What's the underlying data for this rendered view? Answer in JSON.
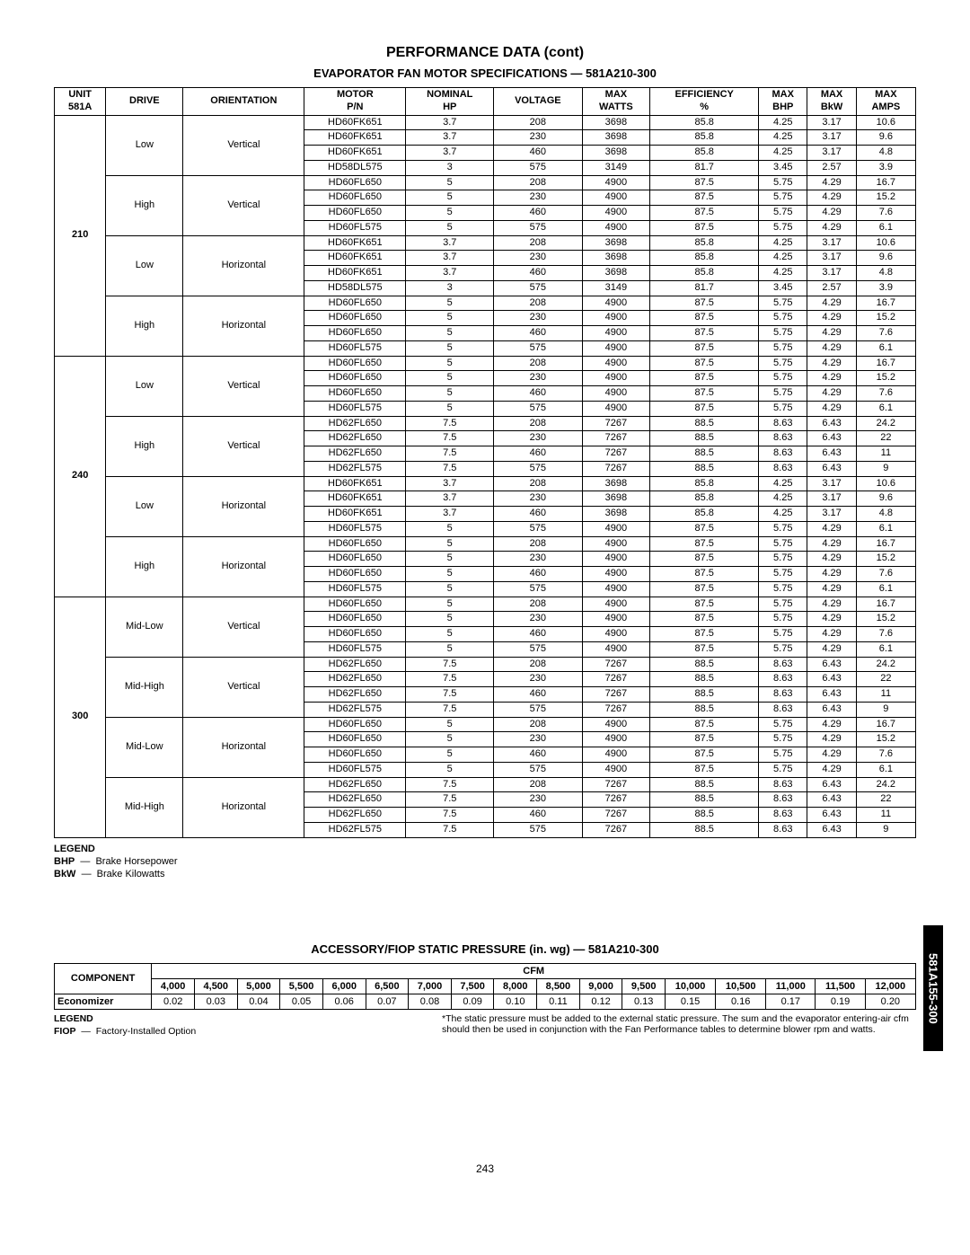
{
  "page_title": "PERFORMANCE DATA (cont)",
  "section1_title": "EVAPORATOR FAN MOTOR SPECIFICATIONS — 581A210-300",
  "section2_title": "ACCESSORY/FIOP STATIC PRESSURE (in. wg) — 581A210-300",
  "side_tab": "581A155-300",
  "page_number": "243",
  "table1": {
    "headers": {
      "unit": "UNIT\n581A",
      "drive": "DRIVE",
      "orientation": "ORIENTATION",
      "motor": "MOTOR\nP/N",
      "nominal": "NOMINAL\nHP",
      "voltage": "VOLTAGE",
      "watts": "MAX\nWATTS",
      "eff": "EFFICIENCY\n%",
      "bhp": "MAX\nBHP",
      "bkw": "MAX\nBkW",
      "amps": "MAX\nAMPS"
    },
    "blocks": [
      {
        "unit": "210",
        "groups": [
          {
            "drive": "Low",
            "orient": "Vertical",
            "rows": [
              [
                "HD60FK651",
                "3.7",
                "208",
                "3698",
                "85.8",
                "4.25",
                "3.17",
                "10.6"
              ],
              [
                "HD60FK651",
                "3.7",
                "230",
                "3698",
                "85.8",
                "4.25",
                "3.17",
                "9.6"
              ],
              [
                "HD60FK651",
                "3.7",
                "460",
                "3698",
                "85.8",
                "4.25",
                "3.17",
                "4.8"
              ],
              [
                "HD58DL575",
                "3",
                "575",
                "3149",
                "81.7",
                "3.45",
                "2.57",
                "3.9"
              ]
            ]
          },
          {
            "drive": "High",
            "orient": "Vertical",
            "rows": [
              [
                "HD60FL650",
                "5",
                "208",
                "4900",
                "87.5",
                "5.75",
                "4.29",
                "16.7"
              ],
              [
                "HD60FL650",
                "5",
                "230",
                "4900",
                "87.5",
                "5.75",
                "4.29",
                "15.2"
              ],
              [
                "HD60FL650",
                "5",
                "460",
                "4900",
                "87.5",
                "5.75",
                "4.29",
                "7.6"
              ],
              [
                "HD60FL575",
                "5",
                "575",
                "4900",
                "87.5",
                "5.75",
                "4.29",
                "6.1"
              ]
            ]
          },
          {
            "drive": "Low",
            "orient": "Horizontal",
            "rows": [
              [
                "HD60FK651",
                "3.7",
                "208",
                "3698",
                "85.8",
                "4.25",
                "3.17",
                "10.6"
              ],
              [
                "HD60FK651",
                "3.7",
                "230",
                "3698",
                "85.8",
                "4.25",
                "3.17",
                "9.6"
              ],
              [
                "HD60FK651",
                "3.7",
                "460",
                "3698",
                "85.8",
                "4.25",
                "3.17",
                "4.8"
              ],
              [
                "HD58DL575",
                "3",
                "575",
                "3149",
                "81.7",
                "3.45",
                "2.57",
                "3.9"
              ]
            ]
          },
          {
            "drive": "High",
            "orient": "Horizontal",
            "rows": [
              [
                "HD60FL650",
                "5",
                "208",
                "4900",
                "87.5",
                "5.75",
                "4.29",
                "16.7"
              ],
              [
                "HD60FL650",
                "5",
                "230",
                "4900",
                "87.5",
                "5.75",
                "4.29",
                "15.2"
              ],
              [
                "HD60FL650",
                "5",
                "460",
                "4900",
                "87.5",
                "5.75",
                "4.29",
                "7.6"
              ],
              [
                "HD60FL575",
                "5",
                "575",
                "4900",
                "87.5",
                "5.75",
                "4.29",
                "6.1"
              ]
            ]
          }
        ]
      },
      {
        "unit": "240",
        "groups": [
          {
            "drive": "Low",
            "orient": "Vertical",
            "rows": [
              [
                "HD60FL650",
                "5",
                "208",
                "4900",
                "87.5",
                "5.75",
                "4.29",
                "16.7"
              ],
              [
                "HD60FL650",
                "5",
                "230",
                "4900",
                "87.5",
                "5.75",
                "4.29",
                "15.2"
              ],
              [
                "HD60FL650",
                "5",
                "460",
                "4900",
                "87.5",
                "5.75",
                "4.29",
                "7.6"
              ],
              [
                "HD60FL575",
                "5",
                "575",
                "4900",
                "87.5",
                "5.75",
                "4.29",
                "6.1"
              ]
            ]
          },
          {
            "drive": "High",
            "orient": "Vertical",
            "rows": [
              [
                "HD62FL650",
                "7.5",
                "208",
                "7267",
                "88.5",
                "8.63",
                "6.43",
                "24.2"
              ],
              [
                "HD62FL650",
                "7.5",
                "230",
                "7267",
                "88.5",
                "8.63",
                "6.43",
                "22"
              ],
              [
                "HD62FL650",
                "7.5",
                "460",
                "7267",
                "88.5",
                "8.63",
                "6.43",
                "11"
              ],
              [
                "HD62FL575",
                "7.5",
                "575",
                "7267",
                "88.5",
                "8.63",
                "6.43",
                "9"
              ]
            ]
          },
          {
            "drive": "Low",
            "orient": "Horizontal",
            "rows": [
              [
                "HD60FK651",
                "3.7",
                "208",
                "3698",
                "85.8",
                "4.25",
                "3.17",
                "10.6"
              ],
              [
                "HD60FK651",
                "3.7",
                "230",
                "3698",
                "85.8",
                "4.25",
                "3.17",
                "9.6"
              ],
              [
                "HD60FK651",
                "3.7",
                "460",
                "3698",
                "85.8",
                "4.25",
                "3.17",
                "4.8"
              ],
              [
                "HD60FL575",
                "5",
                "575",
                "4900",
                "87.5",
                "5.75",
                "4.29",
                "6.1"
              ]
            ]
          },
          {
            "drive": "High",
            "orient": "Horizontal",
            "rows": [
              [
                "HD60FL650",
                "5",
                "208",
                "4900",
                "87.5",
                "5.75",
                "4.29",
                "16.7"
              ],
              [
                "HD60FL650",
                "5",
                "230",
                "4900",
                "87.5",
                "5.75",
                "4.29",
                "15.2"
              ],
              [
                "HD60FL650",
                "5",
                "460",
                "4900",
                "87.5",
                "5.75",
                "4.29",
                "7.6"
              ],
              [
                "HD60FL575",
                "5",
                "575",
                "4900",
                "87.5",
                "5.75",
                "4.29",
                "6.1"
              ]
            ]
          }
        ]
      },
      {
        "unit": "300",
        "groups": [
          {
            "drive": "Mid-Low",
            "orient": "Vertical",
            "rows": [
              [
                "HD60FL650",
                "5",
                "208",
                "4900",
                "87.5",
                "5.75",
                "4.29",
                "16.7"
              ],
              [
                "HD60FL650",
                "5",
                "230",
                "4900",
                "87.5",
                "5.75",
                "4.29",
                "15.2"
              ],
              [
                "HD60FL650",
                "5",
                "460",
                "4900",
                "87.5",
                "5.75",
                "4.29",
                "7.6"
              ],
              [
                "HD60FL575",
                "5",
                "575",
                "4900",
                "87.5",
                "5.75",
                "4.29",
                "6.1"
              ]
            ]
          },
          {
            "drive": "Mid-High",
            "orient": "Vertical",
            "rows": [
              [
                "HD62FL650",
                "7.5",
                "208",
                "7267",
                "88.5",
                "8.63",
                "6.43",
                "24.2"
              ],
              [
                "HD62FL650",
                "7.5",
                "230",
                "7267",
                "88.5",
                "8.63",
                "6.43",
                "22"
              ],
              [
                "HD62FL650",
                "7.5",
                "460",
                "7267",
                "88.5",
                "8.63",
                "6.43",
                "11"
              ],
              [
                "HD62FL575",
                "7.5",
                "575",
                "7267",
                "88.5",
                "8.63",
                "6.43",
                "9"
              ]
            ]
          },
          {
            "drive": "Mid-Low",
            "orient": "Horizontal",
            "rows": [
              [
                "HD60FL650",
                "5",
                "208",
                "4900",
                "87.5",
                "5.75",
                "4.29",
                "16.7"
              ],
              [
                "HD60FL650",
                "5",
                "230",
                "4900",
                "87.5",
                "5.75",
                "4.29",
                "15.2"
              ],
              [
                "HD60FL650",
                "5",
                "460",
                "4900",
                "87.5",
                "5.75",
                "4.29",
                "7.6"
              ],
              [
                "HD60FL575",
                "5",
                "575",
                "4900",
                "87.5",
                "5.75",
                "4.29",
                "6.1"
              ]
            ]
          },
          {
            "drive": "Mid-High",
            "orient": "Horizontal",
            "rows": [
              [
                "HD62FL650",
                "7.5",
                "208",
                "7267",
                "88.5",
                "8.63",
                "6.43",
                "24.2"
              ],
              [
                "HD62FL650",
                "7.5",
                "230",
                "7267",
                "88.5",
                "8.63",
                "6.43",
                "22"
              ],
              [
                "HD62FL650",
                "7.5",
                "460",
                "7267",
                "88.5",
                "8.63",
                "6.43",
                "11"
              ],
              [
                "HD62FL575",
                "7.5",
                "575",
                "7267",
                "88.5",
                "8.63",
                "6.43",
                "9"
              ]
            ]
          }
        ]
      }
    ]
  },
  "legend1": {
    "title": "LEGEND",
    "rows": [
      {
        "abbr": "BHP",
        "desc": "Brake Horsepower"
      },
      {
        "abbr": "BkW",
        "desc": "Brake Kilowatts"
      }
    ]
  },
  "table2": {
    "component_hdr": "COMPONENT",
    "cfm_hdr": "CFM",
    "cols": [
      "4,000",
      "4,500",
      "5,000",
      "5,500",
      "6,000",
      "6,500",
      "7,000",
      "7,500",
      "8,000",
      "8,500",
      "9,000",
      "9,500",
      "10,000",
      "10,500",
      "11,000",
      "11,500",
      "12,000"
    ],
    "row_label": "Economizer",
    "row": [
      "0.02",
      "0.03",
      "0.04",
      "0.05",
      "0.06",
      "0.07",
      "0.08",
      "0.09",
      "0.10",
      "0.11",
      "0.12",
      "0.13",
      "0.15",
      "0.16",
      "0.17",
      "0.19",
      "0.20"
    ]
  },
  "legend2": {
    "title": "LEGEND",
    "abbr": "FIOP",
    "desc": "Factory-Installed Option",
    "note": "*The static pressure must be added to the external static pressure. The sum and the evaporator entering-air cfm should then be used in conjunction with the Fan Performance tables to determine blower rpm and watts."
  }
}
